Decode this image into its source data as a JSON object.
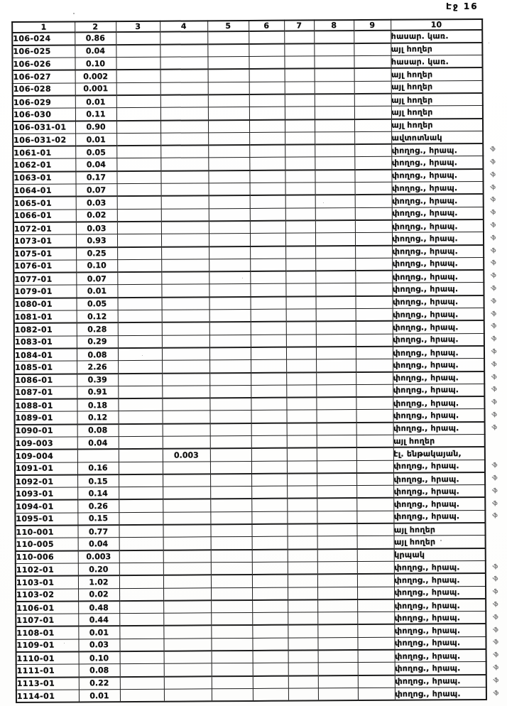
{
  "page_label": "Էջ 16",
  "margin_mark_glyph": "·ֆ",
  "table": {
    "headers": [
      "1",
      "2",
      "3",
      "4",
      "5",
      "6",
      "7",
      "8",
      "9",
      "10"
    ],
    "rows": [
      {
        "code": "106-024",
        "area": "0.86",
        "col4": "",
        "use": "հասար. կառ.",
        "mark": false
      },
      {
        "code": "106-025",
        "area": "0.04",
        "col4": "",
        "use": "այլ հողեր",
        "mark": false
      },
      {
        "code": "106-026",
        "area": "0.10",
        "col4": "",
        "use": "հասար. կառ.",
        "mark": false
      },
      {
        "code": "106-027",
        "area": "0.002",
        "col4": "",
        "use": "այլ հողեր",
        "mark": false
      },
      {
        "code": "106-028",
        "area": "0.001",
        "col4": "",
        "use": "այլ հողեր",
        "mark": false
      },
      {
        "code": "106-029",
        "area": "0.01",
        "col4": "",
        "use": "այլ հողեր",
        "mark": false
      },
      {
        "code": "106-030",
        "area": "0.11",
        "col4": "",
        "use": "այլ հողեր",
        "mark": false
      },
      {
        "code": "106-031-01",
        "area": "0.90",
        "col4": "",
        "use": "այլ հողեր",
        "mark": false
      },
      {
        "code": "106-031-02",
        "area": "0.01",
        "col4": "",
        "use": "ավտոտնակ",
        "mark": false
      },
      {
        "code": "1061-01",
        "area": "0.05",
        "col4": "",
        "use": "փողոց., հրապ.",
        "mark": true
      },
      {
        "code": "1062-01",
        "area": "0.04",
        "col4": "",
        "use": "փողոց., հրապ.",
        "mark": true
      },
      {
        "code": "1063-01",
        "area": "0.17",
        "col4": "",
        "use": "փողոց., հրապ.",
        "mark": true
      },
      {
        "code": "1064-01",
        "area": "0.07",
        "col4": "",
        "use": "փողոց., հրապ.",
        "mark": true
      },
      {
        "code": "1065-01",
        "area": "0.03",
        "col4": "",
        "use": "փողոց., հրապ.",
        "mark": true
      },
      {
        "code": "1066-01",
        "area": "0.02",
        "col4": "",
        "use": "փողոց., հրապ.",
        "mark": true
      },
      {
        "code": "1072-01",
        "area": "0.03",
        "col4": "",
        "use": "փողոց., հրապ.",
        "mark": true
      },
      {
        "code": "1073-01",
        "area": "0.93",
        "col4": "",
        "use": "փողոց., հրապ.",
        "mark": true
      },
      {
        "code": "1075-01",
        "area": "0.25",
        "col4": "",
        "use": "փողոց., հրապ.",
        "mark": true
      },
      {
        "code": "1076-01",
        "area": "0.10",
        "col4": "",
        "use": "փողոց., հրապ.",
        "mark": true
      },
      {
        "code": "1077-01",
        "area": "0.07",
        "col4": "",
        "use": "փողոց., հրապ.",
        "mark": true
      },
      {
        "code": "1079-01",
        "area": "0.01",
        "col4": "",
        "use": "փողոց., հրապ.",
        "mark": true
      },
      {
        "code": "1080-01",
        "area": "0.05",
        "col4": "",
        "use": "փողոց., հրապ.",
        "mark": true
      },
      {
        "code": "1081-01",
        "area": "0.12",
        "col4": "",
        "use": "փողոց., հրապ.",
        "mark": true
      },
      {
        "code": "1082-01",
        "area": "0.28",
        "col4": "",
        "use": "փողոց., հրապ.",
        "mark": true
      },
      {
        "code": "1083-01",
        "area": "0.29",
        "col4": "",
        "use": "փողոց., հրապ.",
        "mark": true
      },
      {
        "code": "1084-01",
        "area": "0.08",
        "col4": "",
        "use": "փողոց., հրապ.",
        "mark": true
      },
      {
        "code": "1085-01",
        "area": "2.26",
        "col4": "",
        "use": "փողոց., հրապ.",
        "mark": true
      },
      {
        "code": "1086-01",
        "area": "0.39",
        "col4": "",
        "use": "փողոց., հրապ.",
        "mark": true
      },
      {
        "code": "1087-01",
        "area": "0.91",
        "col4": "",
        "use": "փողոց., հրապ.",
        "mark": true
      },
      {
        "code": "1088-01",
        "area": "0.18",
        "col4": "",
        "use": "փողոց., հրապ.",
        "mark": true
      },
      {
        "code": "1089-01",
        "area": "0.12",
        "col4": "",
        "use": "փողոց., հրապ.",
        "mark": true
      },
      {
        "code": "1090-01",
        "area": "0.08",
        "col4": "",
        "use": "փողոց., հրապ.",
        "mark": true
      },
      {
        "code": "109-003",
        "area": "0.04",
        "col4": "",
        "use": "այլ հողեր",
        "mark": false
      },
      {
        "code": "109-004",
        "area": "",
        "col4": "0.003",
        "use": "էլ. ենթակայան,",
        "mark": false
      },
      {
        "code": "1091-01",
        "area": "0.16",
        "col4": "",
        "use": "փողոց., հրապ.",
        "mark": true
      },
      {
        "code": "1092-01",
        "area": "0.15",
        "col4": "",
        "use": "փողոց., հրապ.",
        "mark": true
      },
      {
        "code": "1093-01",
        "area": "0.14",
        "col4": "",
        "use": "փողոց., հրապ.",
        "mark": true
      },
      {
        "code": "1094-01",
        "area": "0.26",
        "col4": "",
        "use": "փողոց., հրապ.",
        "mark": true
      },
      {
        "code": "1095-01",
        "area": "0.15",
        "col4": "",
        "use": "փողոց., հրապ.",
        "mark": true
      },
      {
        "code": "110-001",
        "area": "0.77",
        "col4": "",
        "use": "այլ հողեր",
        "mark": false
      },
      {
        "code": "110-005",
        "area": "0.04",
        "col4": "",
        "use": "այլ հողեր",
        "mark": false
      },
      {
        "code": "110-006",
        "area": "0.003",
        "col4": "",
        "use": "կրպակ",
        "mark": false
      },
      {
        "code": "1102-01",
        "area": "0.20",
        "col4": "",
        "use": "փողոց., հրապ.",
        "mark": true
      },
      {
        "code": "1103-01",
        "area": "1.02",
        "col4": "",
        "use": "փողոց., հրապ.",
        "mark": true
      },
      {
        "code": "1103-02",
        "area": "0.02",
        "col4": "",
        "use": "փողոց., հրապ.",
        "mark": true
      },
      {
        "code": "1106-01",
        "area": "0.48",
        "col4": "",
        "use": "փողոց., հրապ.",
        "mark": true
      },
      {
        "code": "1107-01",
        "area": "0.44",
        "col4": "",
        "use": "փողոց., հրապ.",
        "mark": true
      },
      {
        "code": "1108-01",
        "area": "0.01",
        "col4": "",
        "use": "փողոց., հրապ.",
        "mark": true
      },
      {
        "code": "1109-01",
        "area": "0.03",
        "col4": "",
        "use": "փողոց., հրապ.",
        "mark": true
      },
      {
        "code": "1110-01",
        "area": "0.10",
        "col4": "",
        "use": "փողոց., հրապ.",
        "mark": true
      },
      {
        "code": "1111-01",
        "area": "0.08",
        "col4": "",
        "use": "փողոց., հրապ.",
        "mark": true
      },
      {
        "code": "1113-01",
        "area": "0.22",
        "col4": "",
        "use": "փողոց., հրապ.",
        "mark": true
      },
      {
        "code": "1114-01",
        "area": "0.01",
        "col4": "",
        "use": "փողոց., հրապ.",
        "mark": true
      }
    ]
  }
}
